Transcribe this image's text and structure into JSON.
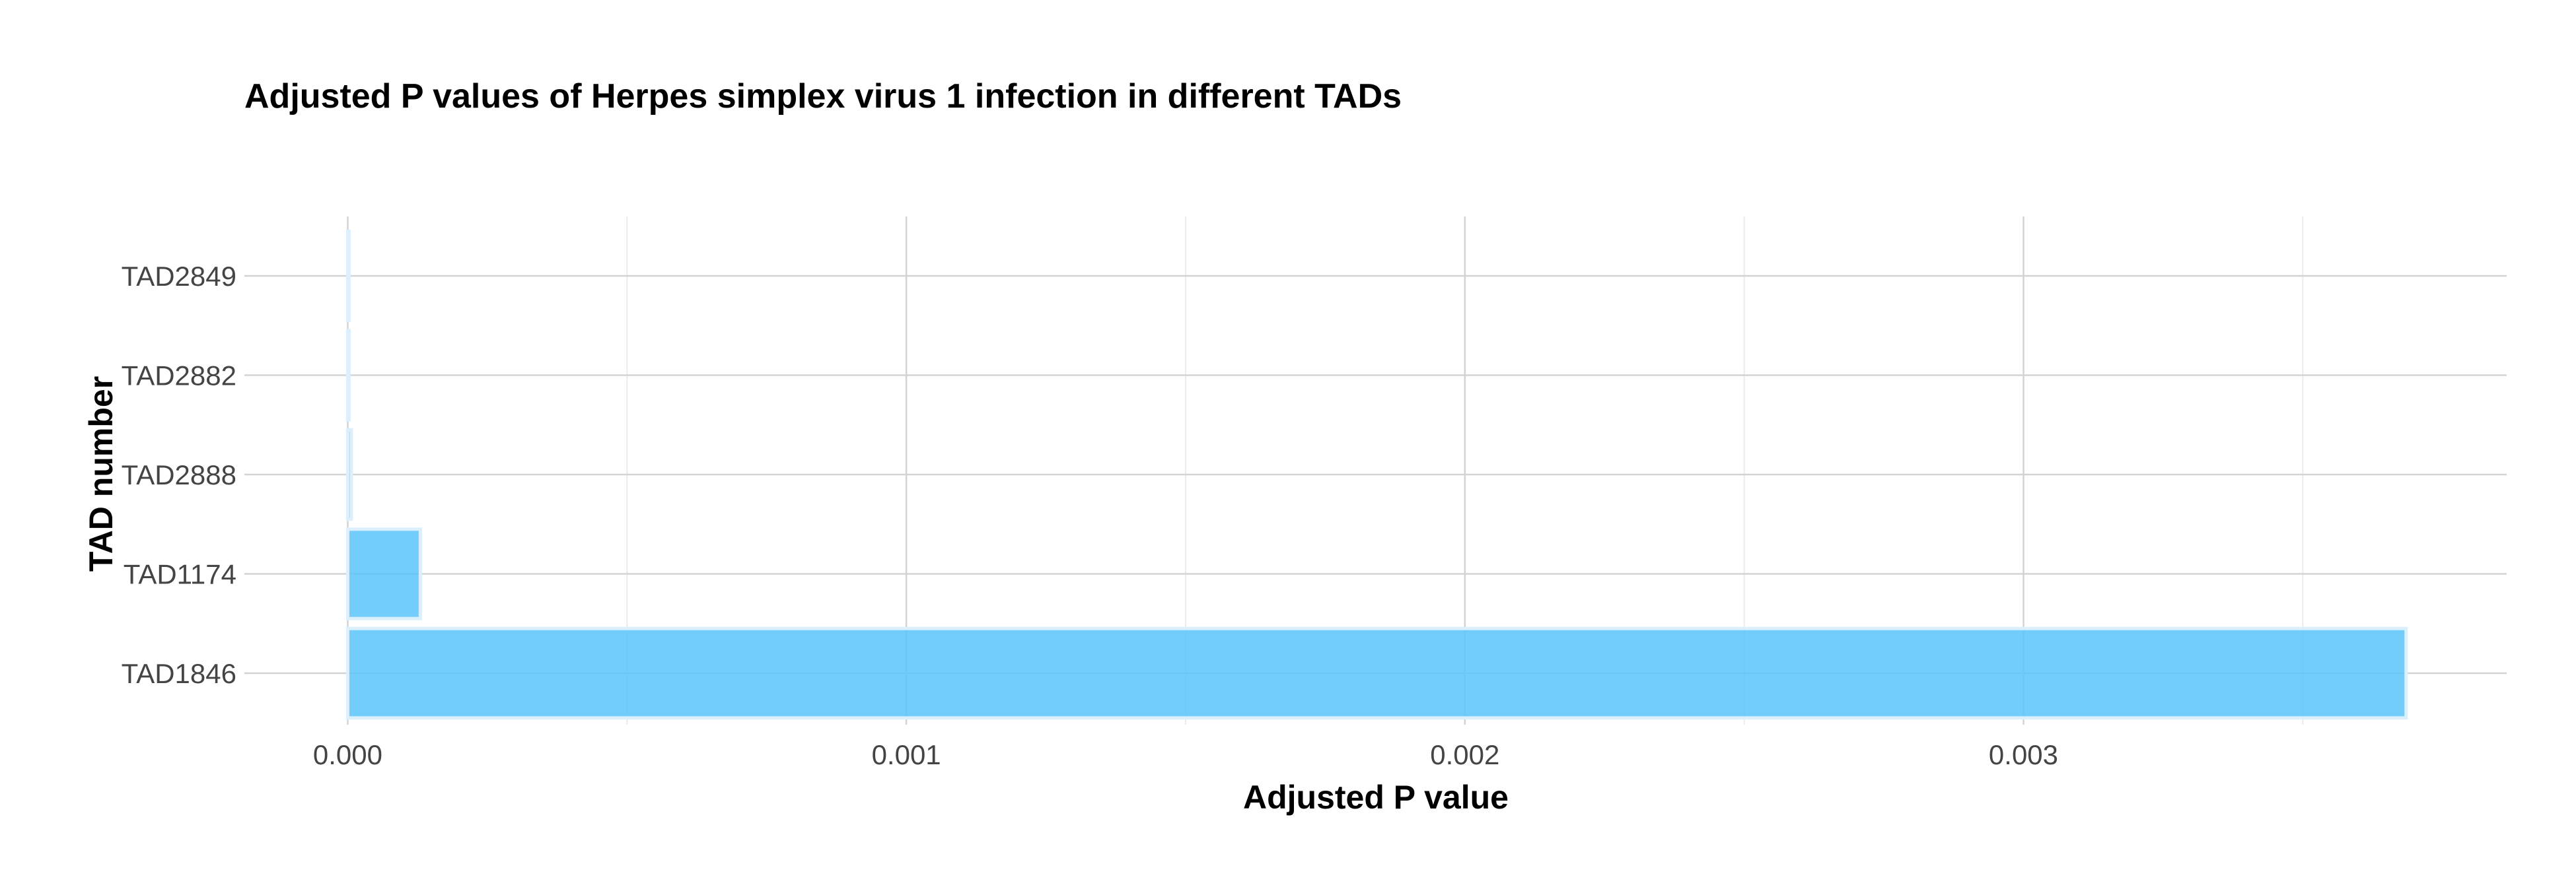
{
  "chart_data": {
    "type": "bar",
    "orientation": "horizontal",
    "title": "Adjusted P values of Herpes simplex virus 1 infection in different TADs",
    "xlabel": "Adjusted P value",
    "ylabel": "TAD number",
    "categories": [
      "TAD1846",
      "TAD1174",
      "TAD2888",
      "TAD2882",
      "TAD2849"
    ],
    "values": [
      0.003685,
      0.00013,
      6.5e-06,
      2.2e-06,
      4e-07
    ],
    "xlim": [
      -0.000185,
      0.003865
    ],
    "x_ticks": [
      "0.000",
      "0.001",
      "0.002",
      "0.003"
    ],
    "x_tick_values": [
      0,
      0.001,
      0.002,
      0.003
    ],
    "grid": true,
    "legend": "none",
    "colors": {
      "bar_fill": "#5BC4FA",
      "bar_stroke": "#DCEFFC",
      "grid_major": "#D3D3D3",
      "grid_minor": "#EBEBEB",
      "title": "#000000",
      "tick_text": "#444444"
    }
  }
}
